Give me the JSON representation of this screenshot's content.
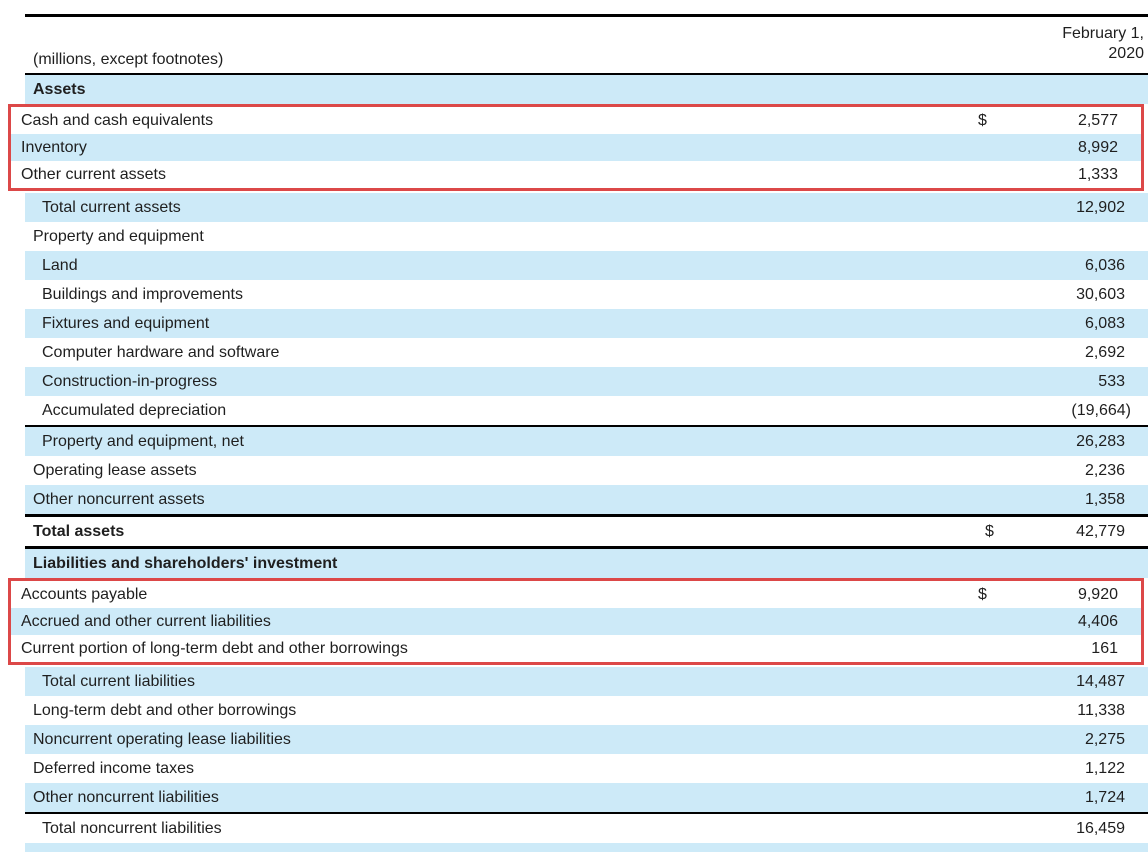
{
  "colors": {
    "stripe_blue": "#cdeaf8",
    "highlight_red": "#dc4848",
    "rule_black": "#000000",
    "text": "#1f1f1f"
  },
  "header": {
    "units_label": "(millions, except footnotes)",
    "period_line1": "February 1,",
    "period_line2": "2020"
  },
  "rows": [
    {
      "label": "Assets",
      "currency": "",
      "value": ""
    },
    {
      "label": "Cash and cash equivalents",
      "currency": "$",
      "value": "2,577"
    },
    {
      "label": "Inventory",
      "currency": "",
      "value": "8,992"
    },
    {
      "label": "Other current assets",
      "currency": "",
      "value": "1,333"
    },
    {
      "label": "Total current assets",
      "currency": "",
      "value": "12,902"
    },
    {
      "label": "Property and equipment",
      "currency": "",
      "value": ""
    },
    {
      "label": "Land",
      "currency": "",
      "value": "6,036"
    },
    {
      "label": "Buildings and improvements",
      "currency": "",
      "value": "30,603"
    },
    {
      "label": "Fixtures and equipment",
      "currency": "",
      "value": "6,083"
    },
    {
      "label": "Computer hardware and software",
      "currency": "",
      "value": "2,692"
    },
    {
      "label": "Construction-in-progress",
      "currency": "",
      "value": "533"
    },
    {
      "label": "Accumulated depreciation",
      "currency": "",
      "value": "(19,664)"
    },
    {
      "label": "Property and equipment, net",
      "currency": "",
      "value": "26,283"
    },
    {
      "label": "Operating lease assets",
      "currency": "",
      "value": "2,236"
    },
    {
      "label": "Other noncurrent assets",
      "currency": "",
      "value": "1,358"
    },
    {
      "label": "Total assets",
      "currency": "$",
      "value": "42,779"
    },
    {
      "label": "Liabilities and shareholders' investment",
      "currency": "",
      "value": ""
    },
    {
      "label": "Accounts payable",
      "currency": "$",
      "value": "9,920"
    },
    {
      "label": "Accrued and other current liabilities",
      "currency": "",
      "value": "4,406"
    },
    {
      "label": "Current portion of long-term debt and other borrowings",
      "currency": "",
      "value": "161"
    },
    {
      "label": "Total current liabilities",
      "currency": "",
      "value": "14,487"
    },
    {
      "label": "Long-term debt and other borrowings",
      "currency": "",
      "value": "11,338"
    },
    {
      "label": "Noncurrent operating lease liabilities",
      "currency": "",
      "value": "2,275"
    },
    {
      "label": "Deferred income taxes",
      "currency": "",
      "value": "1,122"
    },
    {
      "label": "Other noncurrent liabilities",
      "currency": "",
      "value": "1,724"
    },
    {
      "label": "Total noncurrent liabilities",
      "currency": "",
      "value": "16,459"
    }
  ]
}
